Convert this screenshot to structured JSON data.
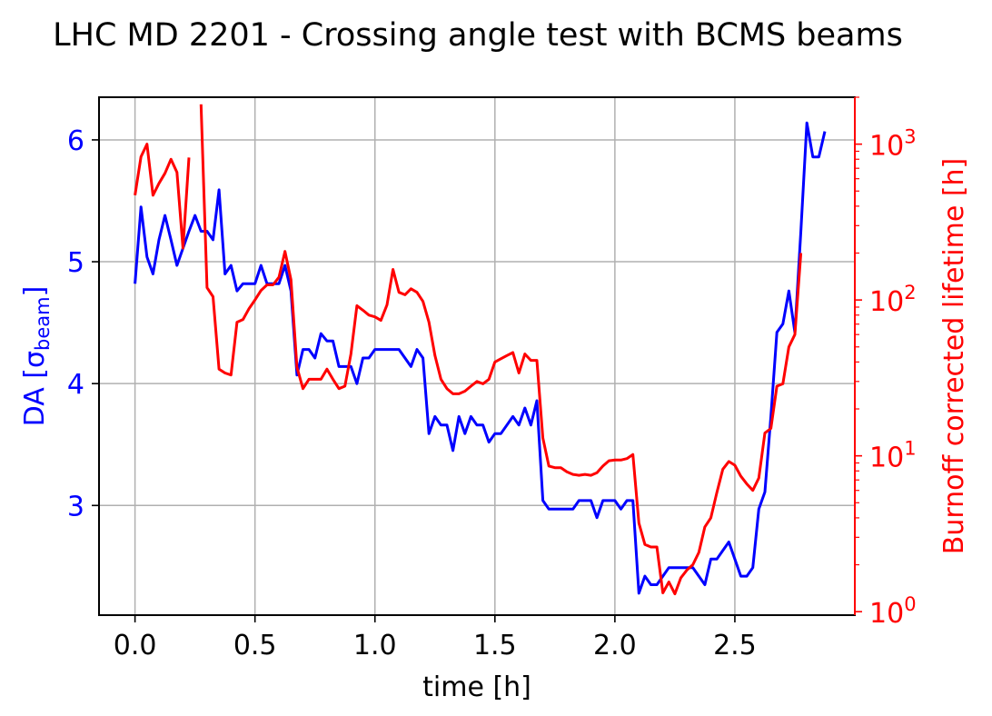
{
  "chart_data": {
    "type": "line",
    "title": "LHC MD 2201 - Crossing angle test with BCMS beams",
    "xlabel": "time [h]",
    "ylabel_left_main": "DA [σ",
    "ylabel_left_sub": "beam",
    "ylabel_left_end": "]",
    "ylabel_right": "Burnoff corrected lifetime [h]",
    "xlim": [
      -0.15,
      3.0
    ],
    "ylim_left": [
      2.1,
      6.35
    ],
    "ylim_right": [
      0.95,
      2000
    ],
    "right_scale": "log",
    "grid": true,
    "x_ticks": [
      {
        "value": 0.0,
        "label": "0.0"
      },
      {
        "value": 0.5,
        "label": "0.5"
      },
      {
        "value": 1.0,
        "label": "1.0"
      },
      {
        "value": 1.5,
        "label": "1.5"
      },
      {
        "value": 2.0,
        "label": "2.0"
      },
      {
        "value": 2.5,
        "label": "2.5"
      }
    ],
    "y_left_ticks": [
      {
        "value": 3,
        "label": "3"
      },
      {
        "value": 4,
        "label": "4"
      },
      {
        "value": 5,
        "label": "5"
      },
      {
        "value": 6,
        "label": "6"
      }
    ],
    "y_right_ticks": [
      {
        "value": 1,
        "base": "10",
        "exp": "0"
      },
      {
        "value": 10,
        "base": "10",
        "exp": "1"
      },
      {
        "value": 100,
        "base": "10",
        "exp": "2"
      },
      {
        "value": 1000,
        "base": "10",
        "exp": "3"
      }
    ],
    "colors": {
      "left_series": "#0000ff",
      "right_series": "#ff0000",
      "grid": "#b0b0b0",
      "axis": "#000000"
    },
    "series": [
      {
        "axis": "left",
        "color": "#0000ff",
        "points": [
          [
            0.0,
            4.82
          ],
          [
            0.025,
            5.45
          ],
          [
            0.05,
            5.04
          ],
          [
            0.075,
            4.9
          ],
          [
            0.1,
            5.18
          ],
          [
            0.125,
            5.38
          ],
          [
            0.15,
            5.18
          ],
          [
            0.175,
            4.97
          ],
          [
            0.2,
            5.11
          ],
          [
            0.225,
            5.25
          ],
          [
            0.25,
            5.38
          ],
          [
            0.275,
            5.25
          ],
          [
            0.3,
            5.25
          ],
          [
            0.325,
            5.18
          ],
          [
            0.35,
            5.59
          ],
          [
            0.375,
            4.9
          ],
          [
            0.4,
            4.97
          ],
          [
            0.425,
            4.76
          ],
          [
            0.45,
            4.82
          ],
          [
            0.475,
            4.82
          ],
          [
            0.5,
            4.82
          ],
          [
            0.525,
            4.97
          ],
          [
            0.55,
            4.82
          ],
          [
            0.575,
            4.82
          ],
          [
            0.6,
            4.82
          ],
          [
            0.625,
            4.97
          ],
          [
            0.65,
            4.76
          ],
          [
            0.675,
            4.07
          ],
          [
            0.7,
            4.28
          ],
          [
            0.725,
            4.28
          ],
          [
            0.75,
            4.21
          ],
          [
            0.775,
            4.41
          ],
          [
            0.8,
            4.35
          ],
          [
            0.825,
            4.35
          ],
          [
            0.85,
            4.14
          ],
          [
            0.875,
            4.14
          ],
          [
            0.9,
            4.14
          ],
          [
            0.925,
            4.0
          ],
          [
            0.95,
            4.21
          ],
          [
            0.975,
            4.21
          ],
          [
            1.0,
            4.28
          ],
          [
            1.025,
            4.28
          ],
          [
            1.05,
            4.28
          ],
          [
            1.075,
            4.28
          ],
          [
            1.1,
            4.28
          ],
          [
            1.125,
            4.21
          ],
          [
            1.15,
            4.14
          ],
          [
            1.175,
            4.28
          ],
          [
            1.2,
            4.21
          ],
          [
            1.225,
            3.59
          ],
          [
            1.25,
            3.73
          ],
          [
            1.275,
            3.66
          ],
          [
            1.3,
            3.66
          ],
          [
            1.325,
            3.45
          ],
          [
            1.35,
            3.73
          ],
          [
            1.375,
            3.59
          ],
          [
            1.4,
            3.73
          ],
          [
            1.425,
            3.66
          ],
          [
            1.45,
            3.66
          ],
          [
            1.475,
            3.52
          ],
          [
            1.5,
            3.59
          ],
          [
            1.525,
            3.59
          ],
          [
            1.55,
            3.66
          ],
          [
            1.575,
            3.73
          ],
          [
            1.6,
            3.66
          ],
          [
            1.625,
            3.8
          ],
          [
            1.65,
            3.66
          ],
          [
            1.675,
            3.86
          ],
          [
            1.7,
            3.04
          ],
          [
            1.725,
            2.97
          ],
          [
            1.75,
            2.97
          ],
          [
            1.775,
            2.97
          ],
          [
            1.8,
            2.97
          ],
          [
            1.825,
            2.97
          ],
          [
            1.85,
            3.04
          ],
          [
            1.875,
            3.04
          ],
          [
            1.9,
            3.04
          ],
          [
            1.925,
            2.9
          ],
          [
            1.95,
            3.04
          ],
          [
            1.975,
            3.04
          ],
          [
            2.0,
            3.04
          ],
          [
            2.025,
            2.97
          ],
          [
            2.05,
            3.04
          ],
          [
            2.075,
            3.04
          ],
          [
            2.1,
            2.28
          ],
          [
            2.125,
            2.42
          ],
          [
            2.15,
            2.35
          ],
          [
            2.175,
            2.35
          ],
          [
            2.2,
            2.42
          ],
          [
            2.225,
            2.49
          ],
          [
            2.25,
            2.49
          ],
          [
            2.275,
            2.49
          ],
          [
            2.3,
            2.49
          ],
          [
            2.325,
            2.49
          ],
          [
            2.35,
            2.42
          ],
          [
            2.375,
            2.35
          ],
          [
            2.4,
            2.56
          ],
          [
            2.425,
            2.56
          ],
          [
            2.45,
            2.63
          ],
          [
            2.475,
            2.7
          ],
          [
            2.5,
            2.56
          ],
          [
            2.525,
            2.42
          ],
          [
            2.55,
            2.42
          ],
          [
            2.575,
            2.49
          ],
          [
            2.6,
            2.97
          ],
          [
            2.625,
            3.11
          ],
          [
            2.65,
            3.73
          ],
          [
            2.675,
            4.42
          ],
          [
            2.7,
            4.49
          ],
          [
            2.725,
            4.76
          ],
          [
            2.75,
            4.42
          ],
          [
            2.775,
            5.25
          ],
          [
            2.8,
            6.14
          ],
          [
            2.825,
            5.86
          ],
          [
            2.85,
            5.86
          ],
          [
            2.875,
            6.07
          ]
        ]
      },
      {
        "axis": "right",
        "color": "#ff0000",
        "segments": [
          [
            [
              0.0,
              470
            ],
            [
              0.025,
              830
            ],
            [
              0.05,
              1000
            ],
            [
              0.075,
              470
            ],
            [
              0.1,
              560
            ],
            [
              0.125,
              650
            ],
            [
              0.15,
              800
            ],
            [
              0.175,
              660
            ],
            [
              0.2,
              215
            ],
            [
              0.225,
              820
            ]
          ],
          [
            [
              0.275,
              1800
            ],
            [
              0.3,
              120
            ],
            [
              0.325,
              105
            ],
            [
              0.35,
              36
            ],
            [
              0.375,
              34
            ],
            [
              0.4,
              33
            ],
            [
              0.425,
              72
            ],
            [
              0.45,
              75
            ],
            [
              0.475,
              88
            ],
            [
              0.5,
              100
            ],
            [
              0.525,
              115
            ],
            [
              0.55,
              125
            ],
            [
              0.575,
              125
            ],
            [
              0.6,
              140
            ],
            [
              0.625,
              205
            ],
            [
              0.65,
              135
            ],
            [
              0.675,
              37
            ],
            [
              0.7,
              27
            ],
            [
              0.725,
              31
            ],
            [
              0.75,
              31
            ],
            [
              0.775,
              31
            ],
            [
              0.8,
              36
            ],
            [
              0.825,
              31
            ],
            [
              0.85,
              27
            ],
            [
              0.875,
              28
            ],
            [
              0.9,
              45
            ],
            [
              0.925,
              92
            ],
            [
              0.95,
              86
            ],
            [
              0.975,
              80
            ],
            [
              1.0,
              78
            ],
            [
              1.025,
              74
            ],
            [
              1.05,
              93
            ],
            [
              1.075,
              157
            ],
            [
              1.1,
              112
            ],
            [
              1.125,
              108
            ],
            [
              1.15,
              118
            ],
            [
              1.175,
              112
            ],
            [
              1.2,
              98
            ],
            [
              1.225,
              72
            ],
            [
              1.25,
              44
            ],
            [
              1.275,
              31
            ],
            [
              1.3,
              27
            ],
            [
              1.325,
              25
            ],
            [
              1.35,
              25
            ],
            [
              1.375,
              26
            ],
            [
              1.4,
              28
            ],
            [
              1.425,
              30
            ],
            [
              1.45,
              29
            ],
            [
              1.475,
              31
            ],
            [
              1.5,
              40
            ],
            [
              1.525,
              42
            ],
            [
              1.55,
              44
            ],
            [
              1.575,
              46
            ],
            [
              1.6,
              34
            ],
            [
              1.625,
              45
            ],
            [
              1.65,
              41
            ],
            [
              1.675,
              41
            ],
            [
              1.7,
              13
            ],
            [
              1.725,
              8.6
            ],
            [
              1.75,
              8.4
            ],
            [
              1.775,
              8.4
            ],
            [
              1.8,
              7.9
            ],
            [
              1.825,
              7.6
            ],
            [
              1.85,
              7.5
            ],
            [
              1.875,
              7.6
            ],
            [
              1.9,
              7.5
            ],
            [
              1.925,
              7.8
            ],
            [
              1.95,
              8.6
            ],
            [
              1.975,
              9.3
            ],
            [
              2.0,
              9.4
            ],
            [
              2.025,
              9.4
            ],
            [
              2.05,
              9.6
            ],
            [
              2.075,
              10.2
            ],
            [
              2.1,
              3.7
            ],
            [
              2.125,
              2.7
            ],
            [
              2.15,
              2.6
            ],
            [
              2.175,
              2.6
            ],
            [
              2.2,
              1.32
            ],
            [
              2.225,
              1.55
            ],
            [
              2.25,
              1.3
            ],
            [
              2.275,
              1.65
            ],
            [
              2.3,
              1.85
            ],
            [
              2.325,
              2.0
            ],
            [
              2.35,
              2.4
            ],
            [
              2.375,
              3.5
            ],
            [
              2.4,
              4.0
            ],
            [
              2.425,
              5.8
            ],
            [
              2.45,
              8.2
            ],
            [
              2.475,
              9.2
            ],
            [
              2.5,
              8.7
            ],
            [
              2.525,
              7.4
            ],
            [
              2.55,
              6.6
            ],
            [
              2.575,
              6.0
            ],
            [
              2.6,
              7.2
            ],
            [
              2.625,
              14
            ],
            [
              2.65,
              15
            ],
            [
              2.675,
              28
            ],
            [
              2.7,
              29
            ],
            [
              2.725,
              50
            ],
            [
              2.75,
              60
            ],
            [
              2.775,
              200
            ]
          ]
        ]
      }
    ]
  }
}
